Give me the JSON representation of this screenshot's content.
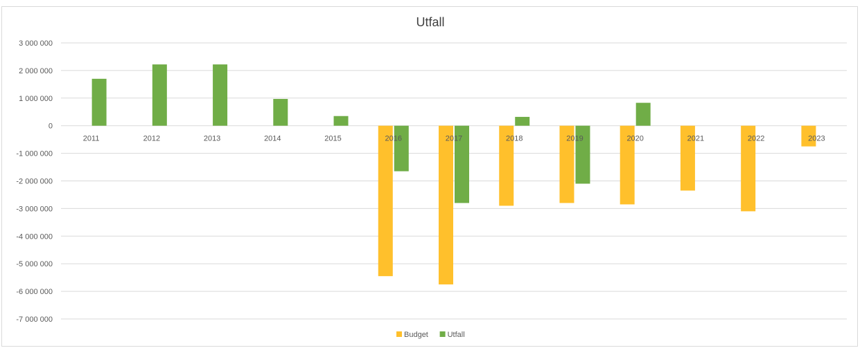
{
  "chart_data": {
    "type": "bar",
    "title": "Utfall",
    "categories": [
      "2011",
      "2012",
      "2013",
      "2014",
      "2015",
      "2016",
      "2017",
      "2018",
      "2019",
      "2020",
      "2021",
      "2022",
      "2023"
    ],
    "series": [
      {
        "name": "Budget",
        "color": "#FFC02C",
        "values": [
          null,
          null,
          null,
          null,
          null,
          -5450000,
          -5750000,
          -2900000,
          -2800000,
          -2850000,
          -2350000,
          -3100000,
          -750000
        ]
      },
      {
        "name": "Utfall",
        "color": "#70AD47",
        "values": [
          1700000,
          2220000,
          2220000,
          970000,
          350000,
          -1650000,
          -2800000,
          320000,
          -2100000,
          830000,
          null,
          null,
          null
        ]
      }
    ],
    "ylim": [
      -7000000,
      3000000
    ],
    "yticks": [
      3000000,
      2000000,
      1000000,
      0,
      -1000000,
      -2000000,
      -3000000,
      -4000000,
      -5000000,
      -6000000,
      -7000000
    ],
    "ytick_labels": [
      "3 000 000",
      "2 000 000",
      "1 000 000",
      "0",
      "-1 000 000",
      "-2 000 000",
      "-3 000 000",
      "-4 000 000",
      "-5 000 000",
      "-6 000 000",
      "-7 000 000"
    ],
    "grid": true,
    "legend_position": "bottom"
  }
}
